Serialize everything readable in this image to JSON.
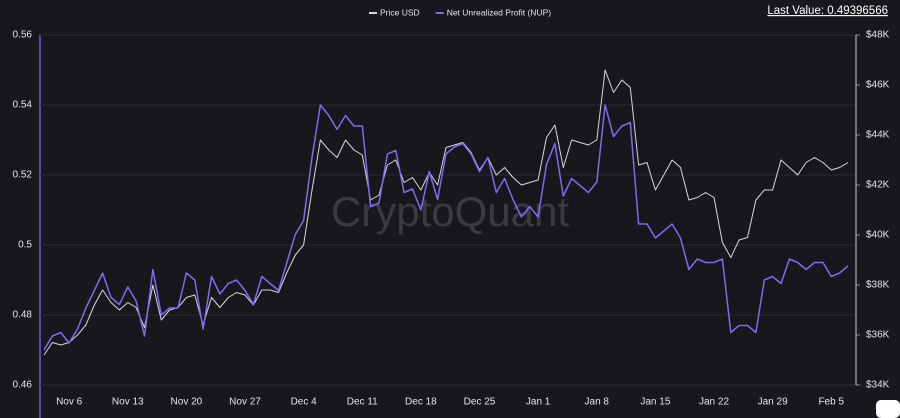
{
  "chart_data": {
    "type": "line",
    "watermark": "CryptoQuant",
    "last_value": "Last Value: 0.49396566",
    "categories": [
      null,
      null,
      null,
      "Nov 6",
      null,
      null,
      null,
      null,
      null,
      null,
      "Nov 13",
      null,
      null,
      null,
      null,
      null,
      null,
      "Nov 20",
      null,
      null,
      null,
      null,
      null,
      null,
      "Nov 27",
      null,
      null,
      null,
      null,
      null,
      null,
      "Dec 4",
      null,
      null,
      null,
      null,
      null,
      null,
      "Dec 11",
      null,
      null,
      null,
      null,
      null,
      null,
      "Dec 18",
      null,
      null,
      null,
      null,
      null,
      null,
      "Dec 25",
      null,
      null,
      null,
      null,
      null,
      null,
      "Jan 1",
      null,
      null,
      null,
      null,
      null,
      null,
      "Jan 8",
      null,
      null,
      null,
      null,
      null,
      null,
      "Jan 15",
      null,
      null,
      null,
      null,
      null,
      null,
      "Jan 22",
      null,
      null,
      null,
      null,
      null,
      null,
      "Jan 29",
      null,
      null,
      null,
      null,
      null,
      null,
      "Feb 5",
      null,
      null
    ],
    "series": [
      {
        "name": "Price USD",
        "color": "#d8d8dc",
        "axis": "y2",
        "values": [
          35200,
          35700,
          35600,
          35700,
          36000,
          36400,
          37200,
          37800,
          37300,
          37000,
          37300,
          37100,
          36300,
          38000,
          36600,
          37000,
          37100,
          37500,
          37600,
          36400,
          37500,
          37100,
          37500,
          37700,
          37600,
          37200,
          37800,
          37800,
          37700,
          38500,
          39200,
          39600,
          41800,
          43800,
          43400,
          43100,
          43800,
          43400,
          43200,
          41400,
          41600,
          42800,
          43000,
          42100,
          42300,
          41800,
          42500,
          42000,
          43500,
          43600,
          43700,
          43300,
          42600,
          43100,
          42400,
          42700,
          42300,
          42000,
          42100,
          42200,
          43900,
          44400,
          42700,
          43800,
          43700,
          43600,
          43800,
          46600,
          45700,
          46200,
          45900,
          42800,
          42900,
          41800,
          42400,
          43000,
          42700,
          41400,
          41500,
          41700,
          41500,
          39700,
          39100,
          39800,
          39900,
          41400,
          41800,
          41800,
          43000,
          42700,
          42400,
          42900,
          43100,
          42900,
          42600,
          42700,
          42900
        ]
      },
      {
        "name": "Net Unrealized Profit (NUP)",
        "color": "#7b6cf0",
        "values": [
          0.47,
          0.474,
          0.475,
          0.472,
          0.476,
          0.482,
          0.487,
          0.492,
          0.485,
          0.483,
          0.488,
          0.484,
          0.474,
          0.493,
          0.48,
          0.482,
          0.482,
          0.492,
          0.49,
          0.476,
          0.491,
          0.486,
          0.489,
          0.49,
          0.487,
          0.483,
          0.491,
          0.489,
          0.487,
          0.495,
          0.503,
          0.507,
          0.525,
          0.54,
          0.537,
          0.533,
          0.537,
          0.534,
          0.534,
          0.511,
          0.512,
          0.526,
          0.527,
          0.515,
          0.516,
          0.51,
          0.521,
          0.513,
          0.526,
          0.528,
          0.529,
          0.526,
          0.521,
          0.525,
          0.515,
          0.519,
          0.513,
          0.508,
          0.511,
          0.508,
          0.523,
          0.529,
          0.514,
          0.519,
          0.517,
          0.515,
          0.518,
          0.54,
          0.531,
          0.534,
          0.535,
          0.506,
          0.506,
          0.502,
          0.504,
          0.506,
          0.502,
          0.493,
          0.496,
          0.495,
          0.495,
          0.496,
          0.475,
          0.477,
          0.477,
          0.475,
          0.49,
          0.491,
          0.489,
          0.496,
          0.495,
          0.493,
          0.495,
          0.495,
          0.491,
          0.492,
          0.494
        ]
      }
    ],
    "ylim": [
      0.46,
      0.56
    ],
    "yticks": [
      0.56,
      0.54,
      0.52,
      0.5,
      0.48,
      0.46
    ],
    "y2lim": [
      34000,
      48000
    ],
    "y2ticks": [
      {
        "value": 48000,
        "label": "$48K"
      },
      {
        "value": 46000,
        "label": "$46K"
      },
      {
        "value": 44000,
        "label": "$44K"
      },
      {
        "value": 42000,
        "label": "$42K"
      },
      {
        "value": 40000,
        "label": "$40K"
      },
      {
        "value": 38000,
        "label": "$38K"
      },
      {
        "value": 36000,
        "label": "$36K"
      },
      {
        "value": 34000,
        "label": "$34K"
      }
    ],
    "grid": true
  }
}
